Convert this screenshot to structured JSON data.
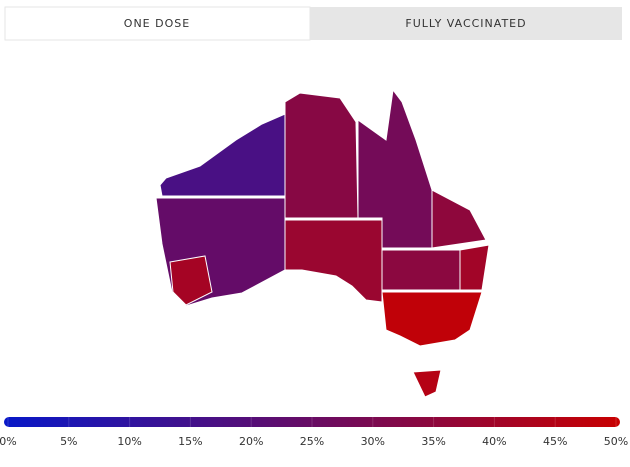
{
  "tabs": [
    {
      "label": "ONE DOSE",
      "active": true
    },
    {
      "label": "FULLY VACCINATED",
      "active": false
    }
  ],
  "map": {
    "regions": [
      {
        "value": 17
      },
      {
        "value": 24
      },
      {
        "value": 41
      },
      {
        "value": 33
      },
      {
        "value": 38
      },
      {
        "value": 28
      },
      {
        "value": 35
      },
      {
        "value": 34
      },
      {
        "value": 40
      },
      {
        "value": 48
      },
      {
        "value": 45
      }
    ]
  },
  "legend": {
    "range": [
      0,
      50
    ],
    "colors": [
      "#0818c8",
      "#c80000"
    ],
    "ticks": [
      {
        "value": 0,
        "label": "0%"
      },
      {
        "value": 5,
        "label": "5%"
      },
      {
        "value": 10,
        "label": "10%"
      },
      {
        "value": 15,
        "label": "15%"
      },
      {
        "value": 20,
        "label": "20%"
      },
      {
        "value": 25,
        "label": "25%"
      },
      {
        "value": 30,
        "label": "30%"
      },
      {
        "value": 35,
        "label": "35%"
      },
      {
        "value": 40,
        "label": "40%"
      },
      {
        "value": 45,
        "label": "45%"
      },
      {
        "value": 50,
        "label": "50%"
      }
    ]
  }
}
